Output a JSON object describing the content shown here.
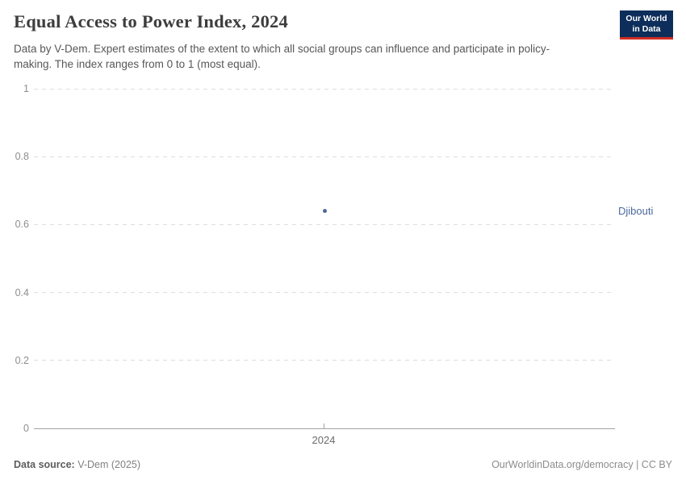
{
  "header": {
    "title": "Equal Access to Power Index, 2024",
    "subtitle": "Data by V-Dem. Expert estimates of the extent to which all social groups can influence and participate in policy-making. The index ranges from 0 to 1 (most equal).",
    "logo": {
      "line1": "Our World",
      "line2": "in Data",
      "bg_color": "#0d2e5a",
      "bar_color": "#d42b21"
    }
  },
  "chart_data": {
    "type": "scatter",
    "title": "Equal Access to Power Index, 2024",
    "xlabel": "",
    "ylabel": "",
    "x": [
      2024
    ],
    "x_tick_labels": [
      "2024"
    ],
    "series": [
      {
        "name": "Djibouti",
        "values": [
          0.64
        ],
        "color": "#4c6a9c"
      }
    ],
    "ylim": [
      0,
      1
    ],
    "y_ticks": [
      0,
      0.2,
      0.4,
      0.6,
      0.8,
      1
    ],
    "y_tick_labels": [
      "0",
      "0.2",
      "0.4",
      "0.6",
      "0.8",
      "1"
    ],
    "grid": "horizontal-dashed",
    "gridline_color": "#dedede",
    "axis_color": "#a3a3a3",
    "legend_position": "label-right-of-plot"
  },
  "footer": {
    "source_label": "Data source:",
    "source_value": " V-Dem (2025)",
    "attribution": "OurWorldinData.org/democracy | CC BY"
  }
}
